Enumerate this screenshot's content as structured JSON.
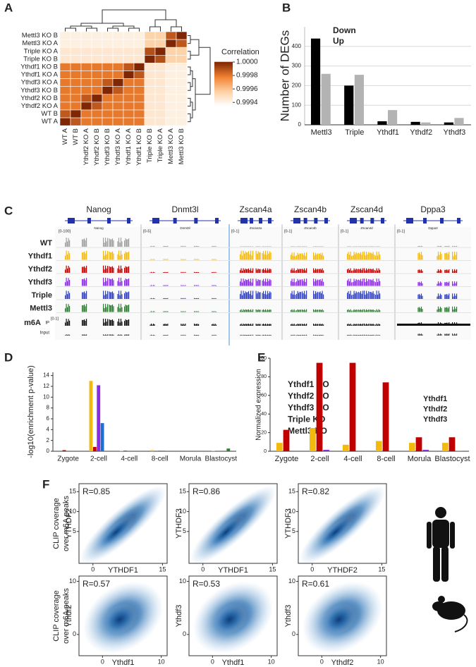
{
  "panel_labels": [
    "A",
    "B",
    "C",
    "D",
    "E",
    "F"
  ],
  "chart_data": [
    {
      "type": "heatmap",
      "colorbar_title": "Correlation",
      "rows": [
        "Mettl3 KO B",
        "Mettl3 KO A",
        "Triple KO A",
        "Triple KO B",
        "Ythdf1 KO B",
        "Ythdf1 KO A",
        "Ythdf3 KO A",
        "Ythdf3 KO B",
        "Ythdf2 KO B",
        "Ythdf2 KO A",
        "WT B",
        "WT A"
      ],
      "columns": [
        "WT A",
        "WT B",
        "Ythdf2 KO A",
        "Ythdf2 KO B",
        "Ythdf3 KO B",
        "Ythdf3 KO A",
        "Ythdf1 KO A",
        "Ythdf1 KO B",
        "Triple KO B",
        "Triple KO A",
        "Mettl3 KO A",
        "Mettl3 KO B"
      ],
      "values": [
        [
          0.99942,
          0.99942,
          0.99942,
          0.99942,
          0.99942,
          0.99942,
          0.99942,
          0.99942,
          0.99955,
          0.99955,
          0.99988,
          1
        ],
        [
          0.99942,
          0.99942,
          0.99942,
          0.99942,
          0.99942,
          0.99942,
          0.99942,
          0.99942,
          0.99955,
          0.99955,
          1,
          0.99988
        ],
        [
          0.99946,
          0.99946,
          0.99946,
          0.99946,
          0.99946,
          0.99946,
          0.99946,
          0.99946,
          0.9999,
          1,
          0.99955,
          0.99955
        ],
        [
          0.99946,
          0.99946,
          0.99946,
          0.99946,
          0.99946,
          0.99946,
          0.99946,
          0.99946,
          1,
          0.9999,
          0.99955,
          0.99955
        ],
        [
          0.9998,
          0.9998,
          0.9998,
          0.9998,
          0.9998,
          0.9998,
          0.99988,
          1,
          0.99946,
          0.99946,
          0.99942,
          0.99942
        ],
        [
          0.9998,
          0.9998,
          0.9998,
          0.9998,
          0.9998,
          0.9998,
          1,
          0.99988,
          0.99946,
          0.99946,
          0.99942,
          0.99942
        ],
        [
          0.9998,
          0.9998,
          0.9998,
          0.9998,
          0.99988,
          1,
          0.9998,
          0.9998,
          0.99946,
          0.99946,
          0.99942,
          0.99942
        ],
        [
          0.9998,
          0.9998,
          0.9998,
          0.9998,
          1,
          0.99988,
          0.9998,
          0.9998,
          0.99946,
          0.99946,
          0.99942,
          0.99942
        ],
        [
          0.9998,
          0.9998,
          0.99988,
          1,
          0.9998,
          0.9998,
          0.9998,
          0.9998,
          0.99946,
          0.99946,
          0.99942,
          0.99942
        ],
        [
          0.9998,
          0.9998,
          1,
          0.99988,
          0.9998,
          0.9998,
          0.9998,
          0.9998,
          0.99946,
          0.99946,
          0.99942,
          0.99942
        ],
        [
          0.99988,
          1,
          0.9998,
          0.9998,
          0.9998,
          0.9998,
          0.9998,
          0.9998,
          0.99946,
          0.99946,
          0.99942,
          0.99942
        ],
        [
          1,
          0.99988,
          0.9998,
          0.9998,
          0.9998,
          0.9998,
          0.9998,
          0.9998,
          0.99946,
          0.99946,
          0.99942,
          0.99942
        ]
      ],
      "zlim": [
        0.99935,
        1
      ],
      "zticks": [
        0.9994,
        0.9996,
        0.9998,
        {
          "value": 1,
          "label": "1.0000"
        }
      ],
      "colorscale": [
        "#ffffff",
        "#fdd0a2",
        "#f08030",
        "#7f2704"
      ]
    },
    {
      "type": "bar",
      "y_label": "Number of DEGs",
      "categories": [
        "Mettl3",
        "Triple",
        "Ythdf1",
        "Ythdf2",
        "Ythdf3"
      ],
      "series": [
        {
          "name": "Down",
          "color": "#000000",
          "values": [
            440,
            200,
            18,
            15,
            12
          ]
        },
        {
          "name": "Up",
          "color": "#b3b3b3",
          "values": [
            260,
            255,
            75,
            12,
            35
          ]
        }
      ],
      "ylim": [
        0,
        500
      ],
      "yticks": [
        0,
        100,
        200,
        300,
        400
      ],
      "grid": true
    },
    {
      "type": "bar",
      "y_label": "-log10(enrichment p-value)",
      "categories": [
        "Zygote",
        "2-cell",
        "4-cell",
        "8-cell",
        "Morula",
        "Blastocyst"
      ],
      "series": [
        {
          "name": "Ythdf1 KO",
          "color": "#f2b90f",
          "values": [
            0,
            13,
            0.1,
            0.2,
            0,
            0.1
          ]
        },
        {
          "name": "Ythdf2 KO",
          "color": "#c00000",
          "values": [
            0.2,
            0.8,
            0.1,
            0,
            0,
            0
          ]
        },
        {
          "name": "Ythdf3 KO",
          "color": "#8a2be2",
          "values": [
            0,
            12.2,
            0,
            0.1,
            0,
            0
          ]
        },
        {
          "name": "Triple KO",
          "color": "#1f6fd0",
          "values": [
            0,
            5.2,
            0,
            0.1,
            0,
            0
          ]
        },
        {
          "name": "Mettl3 KO",
          "color": "#2e7d32",
          "values": [
            0,
            0,
            0,
            0,
            0,
            0.5
          ]
        }
      ],
      "ylim": [
        0,
        14.6
      ],
      "yticks": [
        0,
        2,
        4,
        6,
        8,
        10,
        12,
        14
      ],
      "grid": false
    },
    {
      "type": "bar",
      "y_label": "Normalized expression",
      "categories": [
        "Zygote",
        "2-cell",
        "4-cell",
        "8-cell",
        "Morula",
        "Blastocyst"
      ],
      "series": [
        {
          "name": "Ythdf1",
          "color": "#f2b90f",
          "values": [
            9,
            25,
            7,
            11,
            9,
            9
          ]
        },
        {
          "name": "Ythdf2",
          "color": "#c00000",
          "values": [
            23,
            95,
            95,
            74,
            15,
            15
          ]
        },
        {
          "name": "Ythdf3",
          "color": "#8a2be2",
          "values": [
            0,
            1.5,
            0.5,
            0.5,
            1.5,
            0.3
          ]
        }
      ],
      "ylim": [
        0,
        100
      ],
      "yticks": [
        0,
        20,
        40,
        60,
        80,
        100
      ],
      "grid": false
    }
  ],
  "tracks": {
    "genes": [
      "Nanog",
      "Dnmt3l",
      "Zscan4a",
      "Zscan4b",
      "Zscan4d",
      "Dppa3"
    ],
    "scales": [
      "[0-100]",
      "[0-5]",
      "[0-1]",
      "[0-1]",
      "[0-1]",
      "[0-1]"
    ],
    "samples": [
      {
        "name": "WT",
        "color": "#a0a0a0"
      },
      {
        "name": "Ythdf1",
        "color": "#f2b90f"
      },
      {
        "name": "Ythdf2",
        "color": "#c00000"
      },
      {
        "name": "Ythdf3",
        "color": "#8a2be2"
      },
      {
        "name": "Triple",
        "color": "#3040c0"
      },
      {
        "name": "Mettl3",
        "color": "#2e7d32"
      }
    ],
    "m6a": "m6A",
    "ip": "IP",
    "ip_scale": "[0-1]",
    "input": "Input"
  },
  "clip_panel": {
    "y_label_lines": [
      "CLIP coverage",
      "over m6A peaks"
    ],
    "plots": [
      {
        "r": "R=0.85",
        "x_label": "YTHDF1",
        "y_label": "YTHDF2",
        "xlim": [
          -3,
          16
        ],
        "ylim": [
          -3,
          17
        ],
        "xticks": [
          0,
          15
        ],
        "yticks": [
          5,
          10,
          15
        ]
      },
      {
        "r": "R=0.86",
        "x_label": "YTHDF1",
        "y_label": "YTHDF3",
        "xlim": [
          -3,
          16
        ],
        "ylim": [
          -3,
          17
        ],
        "xticks": [
          0,
          15
        ],
        "yticks": [
          5,
          10,
          15
        ]
      },
      {
        "r": "R=0.82",
        "x_label": "YTHDF2",
        "y_label": "YTHDF3",
        "xlim": [
          -3,
          16
        ],
        "ylim": [
          -3,
          17
        ],
        "xticks": [
          0,
          15
        ],
        "yticks": [
          5,
          10,
          15
        ]
      },
      {
        "r": "R=0.57",
        "x_label": "Ythdf1",
        "y_label": "Ythdf2",
        "xlim": [
          -4,
          11
        ],
        "ylim": [
          -4,
          11
        ],
        "xticks": [
          0,
          10
        ],
        "yticks": [
          0,
          10
        ]
      },
      {
        "r": "R=0.53",
        "x_label": "Ythdf1",
        "y_label": "Ythdf3",
        "xlim": [
          -4,
          11
        ],
        "ylim": [
          -4,
          11
        ],
        "xticks": [
          0,
          10
        ],
        "yticks": [
          0,
          10
        ]
      },
      {
        "r": "R=0.61",
        "x_label": "Ythdf2",
        "y_label": "Ythdf3",
        "xlim": [
          -4,
          11
        ],
        "ylim": [
          -4,
          11
        ],
        "xticks": [
          0,
          10
        ],
        "yticks": [
          0,
          10
        ]
      }
    ]
  }
}
